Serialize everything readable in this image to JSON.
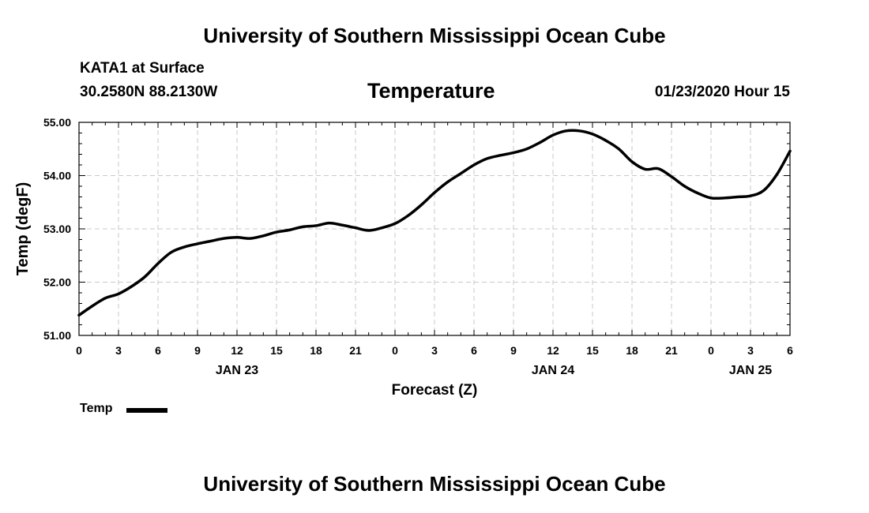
{
  "header": {
    "title": "University of Southern Mississippi Ocean Cube",
    "station": "KATA1 at Surface",
    "coords": "30.2580N 88.2130W",
    "plot_title": "Temperature",
    "valid_time": "01/23/2020 Hour 15",
    "footer": "University of Southern Mississippi Ocean Cube"
  },
  "chart_data": {
    "type": "line",
    "title": "Temperature",
    "xlabel": "Forecast (Z)",
    "ylabel": "Temp (degF)",
    "xlim": [
      0,
      54
    ],
    "ylim": [
      51.0,
      55.0
    ],
    "grid": true,
    "y_ticks": [
      51.0,
      52.0,
      53.0,
      54.0,
      55.0
    ],
    "y_tick_labels": [
      "51.00",
      "52.00",
      "53.00",
      "54.00",
      "55.00"
    ],
    "x_tick_positions": [
      0,
      3,
      6,
      9,
      12,
      15,
      18,
      21,
      24,
      27,
      30,
      33,
      36,
      39,
      42,
      45,
      48,
      51,
      54
    ],
    "x_tick_labels": [
      "0",
      "3",
      "6",
      "9",
      "12",
      "15",
      "18",
      "21",
      "0",
      "3",
      "6",
      "9",
      "12",
      "15",
      "18",
      "21",
      "0",
      "3",
      "6"
    ],
    "date_labels": [
      {
        "label": "JAN 23",
        "at": 12
      },
      {
        "label": "JAN 24",
        "at": 36
      },
      {
        "label": "JAN 25",
        "at": 51
      }
    ],
    "legend": {
      "label": "Temp",
      "position": "bottom-left"
    },
    "series": [
      {
        "name": "Temp",
        "color": "#000000",
        "x": [
          0,
          1,
          2,
          3,
          4,
          5,
          6,
          7,
          8,
          9,
          10,
          11,
          12,
          13,
          14,
          15,
          16,
          17,
          18,
          19,
          20,
          21,
          22,
          23,
          24,
          25,
          26,
          27,
          28,
          29,
          30,
          31,
          32,
          33,
          34,
          35,
          36,
          37,
          38,
          39,
          40,
          41,
          42,
          43,
          44,
          45,
          46,
          47,
          48,
          49,
          50,
          51,
          52,
          53,
          54
        ],
        "values": [
          51.38,
          51.55,
          51.7,
          51.78,
          51.92,
          52.1,
          52.35,
          52.56,
          52.66,
          52.72,
          52.77,
          52.82,
          52.84,
          52.82,
          52.87,
          52.94,
          52.98,
          53.04,
          53.06,
          53.11,
          53.07,
          53.02,
          52.97,
          53.02,
          53.1,
          53.25,
          53.45,
          53.68,
          53.88,
          54.04,
          54.2,
          54.32,
          54.38,
          54.43,
          54.5,
          54.62,
          54.76,
          54.84,
          54.84,
          54.78,
          54.66,
          54.5,
          54.26,
          54.12,
          54.13,
          53.98,
          53.8,
          53.67,
          53.58,
          53.58,
          53.6,
          53.62,
          53.72,
          54.02,
          54.46
        ]
      }
    ]
  }
}
